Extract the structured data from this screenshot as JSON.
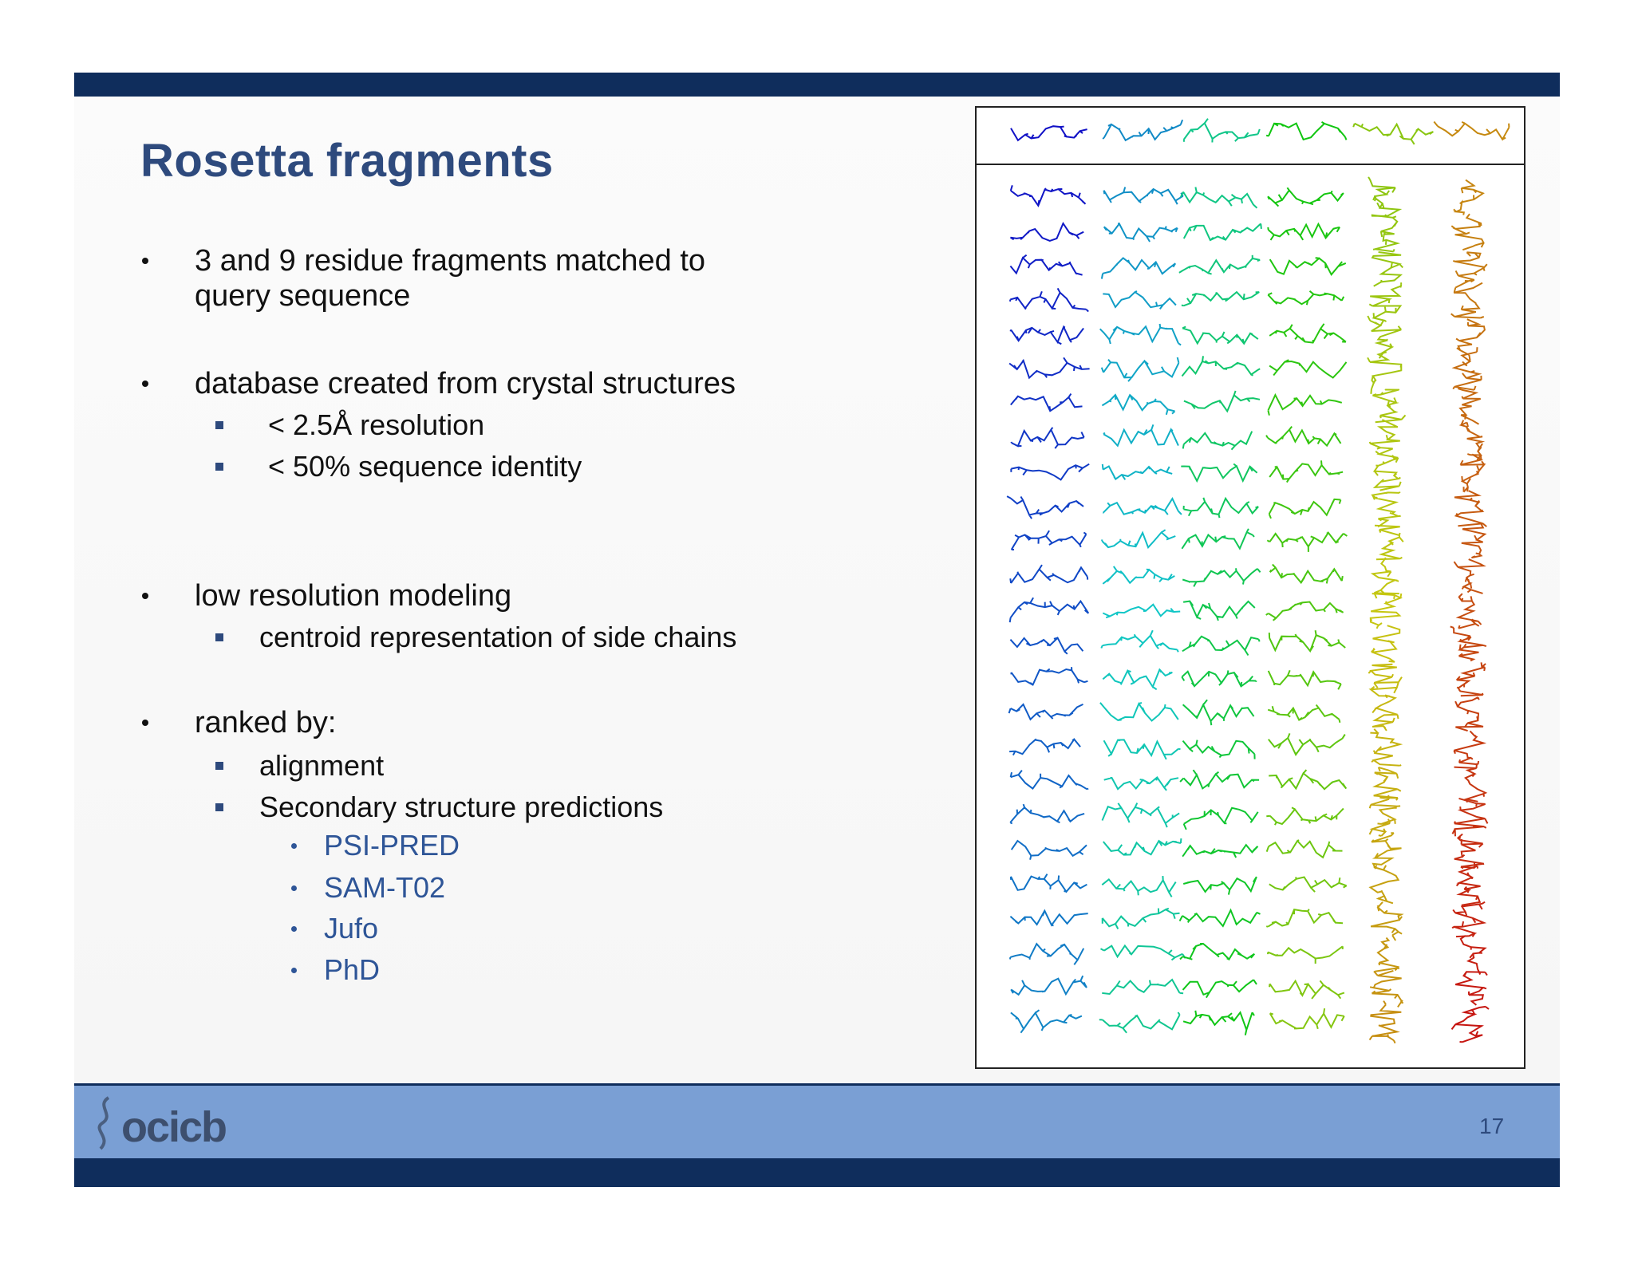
{
  "header": {
    "title": "Rosetta fragments"
  },
  "bullets": [
    {
      "text": "3 and 9 residue fragments matched to query sequence"
    },
    {
      "text": "database created from crystal structures",
      "sub": [
        {
          "text": "< 2.5Å resolution"
        },
        {
          "text": "< 50% sequence identity"
        }
      ]
    },
    {
      "text": "low resolution modeling",
      "sub": [
        {
          "text": "centroid representation of side chains"
        }
      ]
    },
    {
      "text": "ranked by:",
      "sub": [
        {
          "text": "alignment"
        },
        {
          "text": "Secondary structure predictions",
          "sub": [
            {
              "text": "PSI-PRED"
            },
            {
              "text": "SAM-T02"
            },
            {
              "text": "Jufo"
            },
            {
              "text": "PhD"
            }
          ]
        }
      ]
    }
  ],
  "footer": {
    "logo": "ocicb",
    "page": "17"
  }
}
